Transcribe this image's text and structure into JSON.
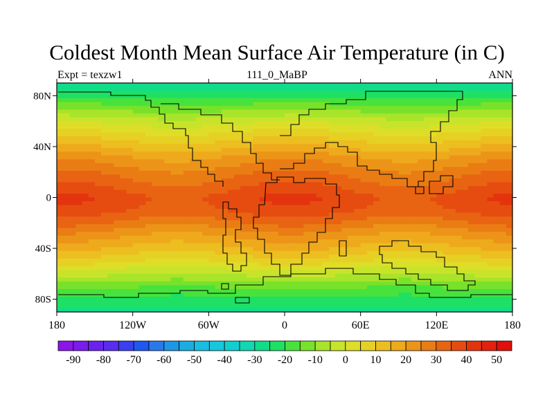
{
  "title": "Coldest Month Mean Surface Air Temperature (in C)",
  "subtitle_left": "Expt = texzw1",
  "subtitle_center": "111_0_MaBP",
  "subtitle_right": "ANN",
  "lon_ticks": [
    "180",
    "120W",
    "60W",
    "0",
    "60E",
    "120E",
    "180"
  ],
  "lat_ticks": [
    "80N",
    "40N",
    "0",
    "40S",
    "80S"
  ],
  "colorbar": {
    "labels": [
      "-90",
      "-80",
      "-70",
      "-60",
      "-50",
      "-40",
      "-30",
      "-20",
      "-10",
      "0",
      "10",
      "20",
      "30",
      "40",
      "50"
    ],
    "colors": [
      "#8a17e8",
      "#7a1cec",
      "#6a22ef",
      "#5a2cf0",
      "#3a3ff0",
      "#1f58f0",
      "#2a78ee",
      "#1e96e6",
      "#1aaee0",
      "#18bde0",
      "#15c8dc",
      "#12cfcf",
      "#10d8b0",
      "#10dc8a",
      "#1ee064",
      "#48e23c",
      "#78e22a",
      "#a8e42a",
      "#c8e42a",
      "#dede28",
      "#e6d024",
      "#ecbe20",
      "#eeaa1c",
      "#ec9418",
      "#ea7c14",
      "#e86412",
      "#e64c10",
      "#e4340e",
      "#e2220e",
      "#e0100c"
    ]
  },
  "chart_data": {
    "type": "heatmap",
    "title": "Coldest Month Mean Surface Air Temperature (in C)",
    "xlabel": "",
    "ylabel": "",
    "x_range": [
      -180,
      180
    ],
    "y_range": [
      -90,
      90
    ],
    "lon_ticks": [
      -180,
      -120,
      -60,
      0,
      60,
      120,
      180
    ],
    "lat_ticks": [
      80,
      40,
      0,
      -40,
      -80
    ],
    "value_range": [
      -95,
      55
    ],
    "zonal_profile": {
      "lat": [
        90,
        80,
        70,
        60,
        50,
        40,
        30,
        20,
        10,
        0,
        -10,
        -20,
        -30,
        -40,
        -50,
        -60,
        -70,
        -80,
        -90
      ],
      "value": [
        -28,
        -22,
        -12,
        -2,
        6,
        14,
        22,
        28,
        33,
        38,
        36,
        29,
        21,
        14,
        6,
        -4,
        -14,
        -22,
        -26
      ]
    }
  }
}
